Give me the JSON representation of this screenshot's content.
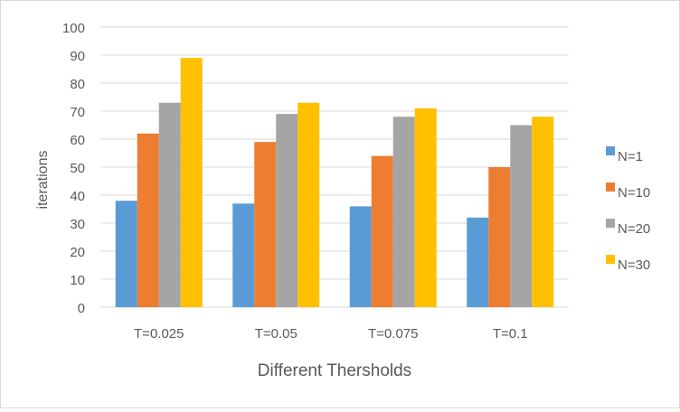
{
  "chart_data": {
    "type": "bar",
    "title": "",
    "xlabel": "Different Thersholds",
    "ylabel": "iterations",
    "ylim": [
      0,
      100
    ],
    "yticks": [
      0,
      10,
      20,
      30,
      40,
      50,
      60,
      70,
      80,
      90,
      100
    ],
    "grid": true,
    "legend_position": "right",
    "categories": [
      "T=0.025",
      "T=0.05",
      "T=0.075",
      "T=0.1"
    ],
    "series": [
      {
        "name": "N=1",
        "color": "#5b9bd5",
        "values": [
          38,
          37,
          36,
          32
        ]
      },
      {
        "name": "N=10",
        "color": "#ed7d31",
        "values": [
          62,
          59,
          54,
          50
        ]
      },
      {
        "name": "N=20",
        "color": "#a5a5a5",
        "values": [
          73,
          69,
          68,
          65
        ]
      },
      {
        "name": "N=30",
        "color": "#ffc000",
        "values": [
          89,
          73,
          71,
          68
        ]
      }
    ]
  }
}
